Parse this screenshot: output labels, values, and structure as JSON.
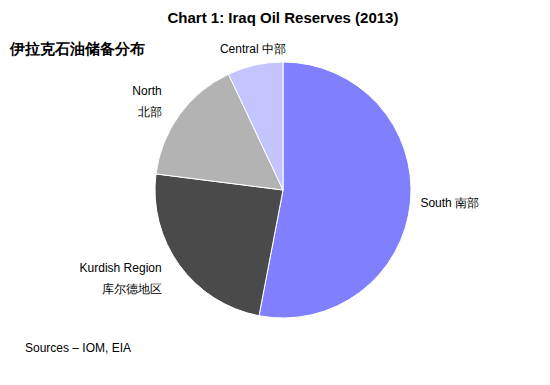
{
  "chart_data": {
    "type": "pie",
    "title": "Chart 1: Iraq Oil Reserves (2013)",
    "subtitle": "伊拉克石油储备分布",
    "source": "Sources – IOM, EIA",
    "categories": [
      "South 南部",
      "Kurdish Region\n库尔德地区",
      "North\n北部",
      "Central 中部"
    ],
    "values": [
      53,
      24,
      16,
      7
    ],
    "colors": [
      "#8080ff",
      "#4a4a4a",
      "#b3b3b3",
      "#c4c4ff"
    ]
  }
}
